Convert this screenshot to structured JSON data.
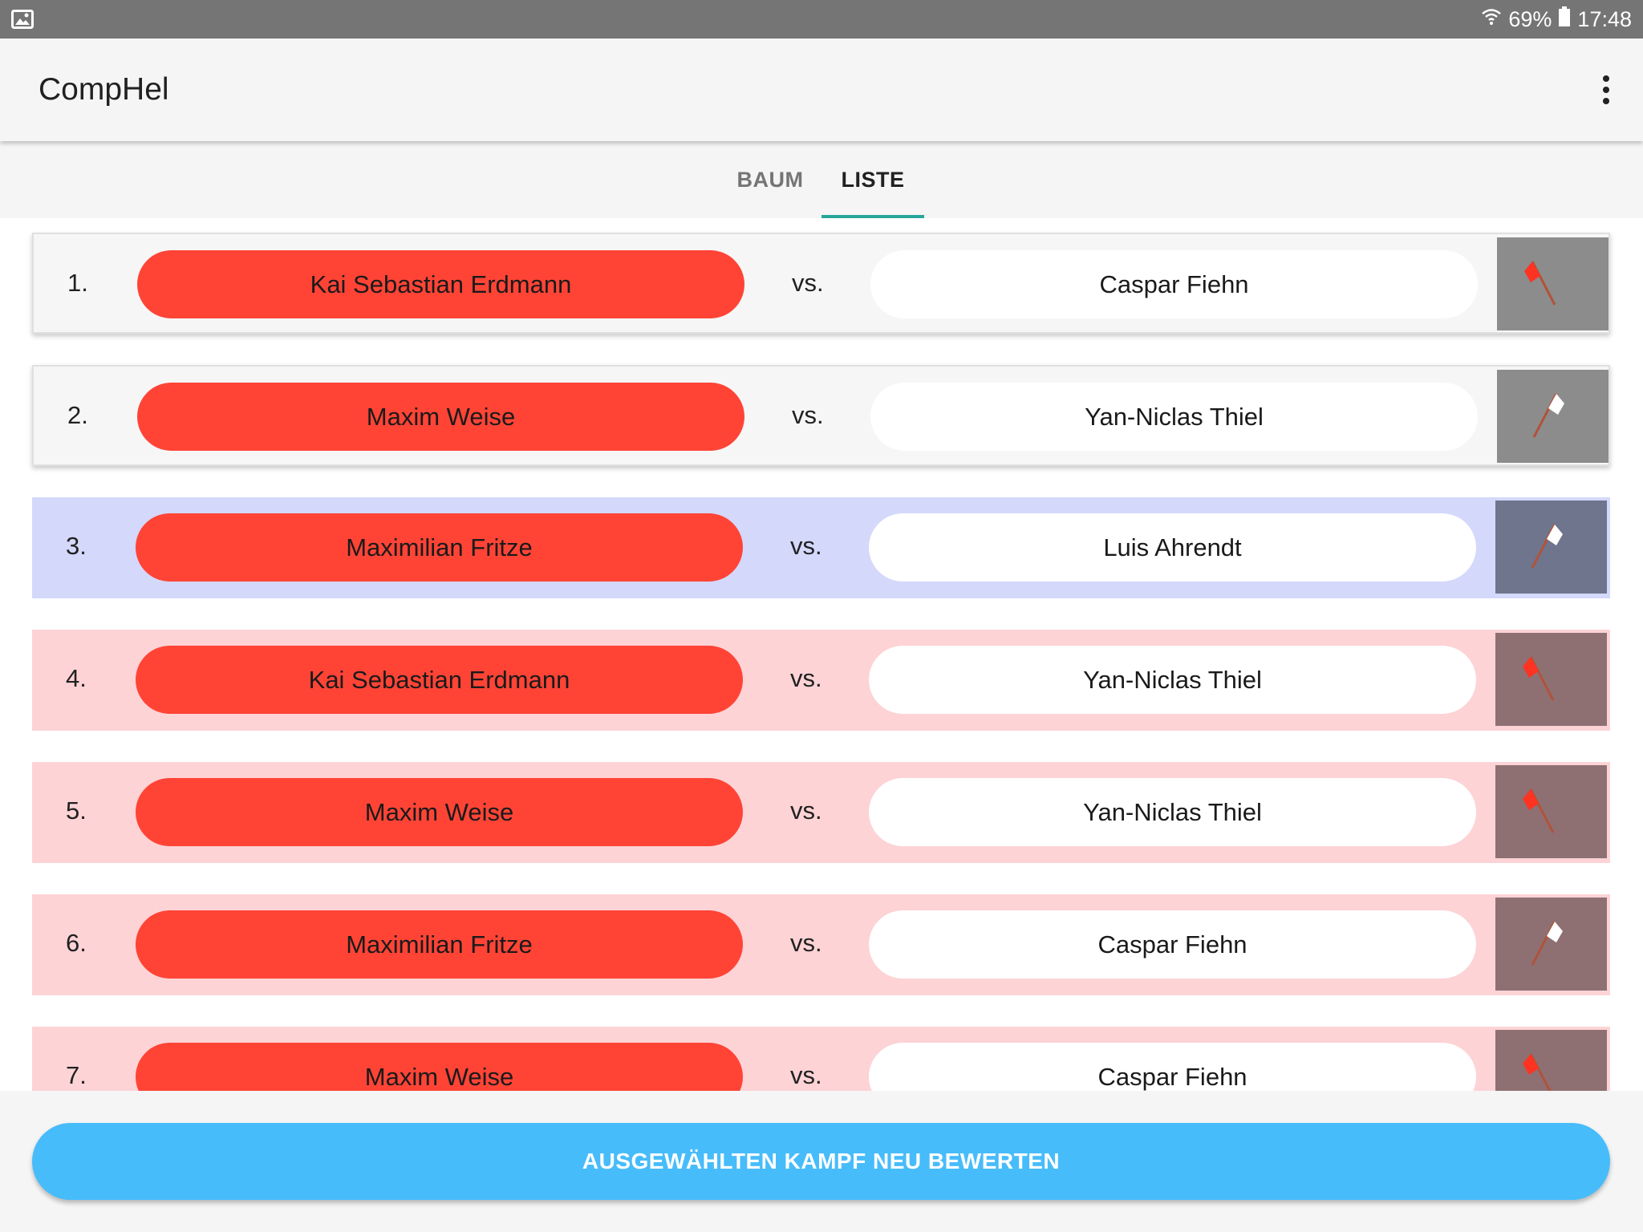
{
  "status_bar": {
    "battery": "69%",
    "time": "17:48",
    "icons": [
      "gallery-icon",
      "wifi-icon",
      "battery-icon"
    ]
  },
  "app": {
    "title": "CompHel",
    "menu_icon": "more-vert-icon"
  },
  "tabs": [
    {
      "label": "BAUM",
      "active": false
    },
    {
      "label": "LISTE",
      "active": true
    }
  ],
  "colors": {
    "red_fighter": "#ff4436",
    "selected_row": "#d4d8fb",
    "lost_row": "#fdd3d6",
    "tab_indicator": "#26a69a",
    "action_button": "#47bcfb"
  },
  "matches": [
    {
      "number": "1.",
      "red": "Kai Sebastian Erdmann",
      "vs": "vs.",
      "white": "Caspar Fiehn",
      "state": "neutral",
      "flag": "red"
    },
    {
      "number": "2.",
      "red": "Maxim Weise",
      "vs": "vs.",
      "white": "Yan-Niclas Thiel",
      "state": "neutral",
      "flag": "white"
    },
    {
      "number": "3.",
      "red": "Maximilian Fritze",
      "vs": "vs.",
      "white": "Luis Ahrendt",
      "state": "selected",
      "flag": "white"
    },
    {
      "number": "4.",
      "red": "Kai Sebastian Erdmann",
      "vs": "vs.",
      "white": "Yan-Niclas Thiel",
      "state": "lost",
      "flag": "red"
    },
    {
      "number": "5.",
      "red": "Maxim Weise",
      "vs": "vs.",
      "white": "Yan-Niclas Thiel",
      "state": "lost",
      "flag": "red"
    },
    {
      "number": "6.",
      "red": "Maximilian Fritze",
      "vs": "vs.",
      "white": "Caspar Fiehn",
      "state": "lost",
      "flag": "white"
    },
    {
      "number": "7.",
      "red": "Maxim Weise",
      "vs": "vs.",
      "white": "Caspar Fiehn",
      "state": "lost",
      "flag": "red"
    }
  ],
  "actions": {
    "reevaluate_label": "AUSGEWÄHLTEN KAMPF NEU BEWERTEN"
  }
}
